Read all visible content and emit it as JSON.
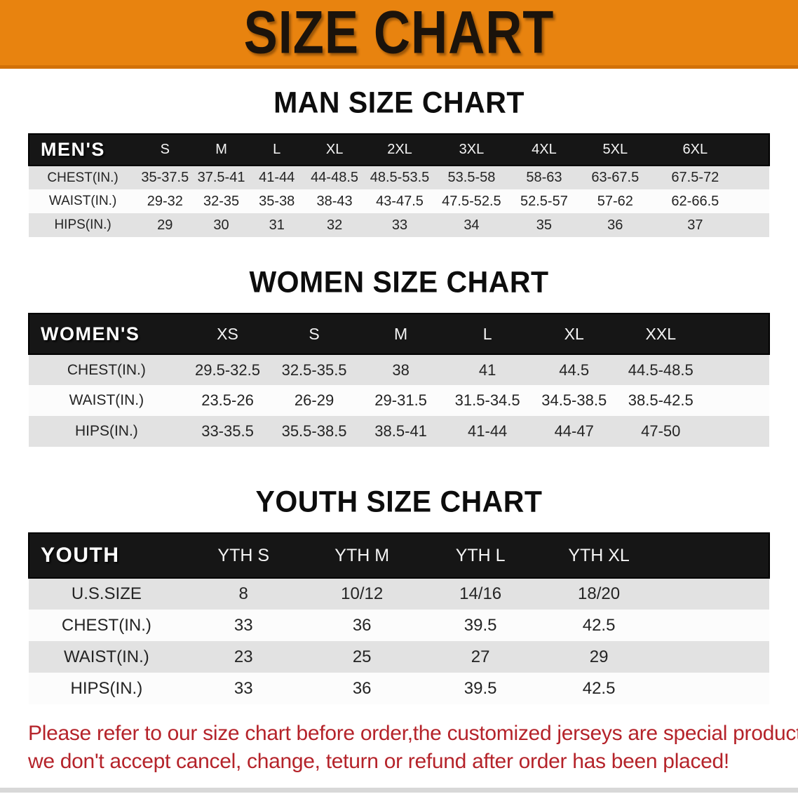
{
  "banner": {
    "title": "SIZE CHART",
    "bg_color": "#e8830f",
    "text_color": "#1b130b"
  },
  "chart_data": [
    {
      "type": "table",
      "title": "MAN SIZE CHART",
      "corner_label": "MEN'S",
      "columns": [
        "S",
        "M",
        "L",
        "XL",
        "2XL",
        "3XL",
        "4XL",
        "5XL",
        "6XL"
      ],
      "rows": [
        {
          "label": "CHEST(IN.)",
          "values": [
            "35-37.5",
            "37.5-41",
            "41-44",
            "44-48.5",
            "48.5-53.5",
            "53.5-58",
            "58-63",
            "63-67.5",
            "67.5-72"
          ]
        },
        {
          "label": "WAIST(IN.)",
          "values": [
            "29-32",
            "32-35",
            "35-38",
            "38-43",
            "43-47.5",
            "47.5-52.5",
            "52.5-57",
            "57-62",
            "62-66.5"
          ]
        },
        {
          "label": "HIPS(IN.)",
          "values": [
            "29",
            "30",
            "31",
            "32",
            "33",
            "34",
            "35",
            "36",
            "37"
          ]
        }
      ]
    },
    {
      "type": "table",
      "title": "WOMEN SIZE CHART",
      "corner_label": "WOMEN'S",
      "columns": [
        "XS",
        "S",
        "M",
        "L",
        "XL",
        "XXL"
      ],
      "rows": [
        {
          "label": "CHEST(IN.)",
          "values": [
            "29.5-32.5",
            "32.5-35.5",
            "38",
            "41",
            "44.5",
            "44.5-48.5"
          ]
        },
        {
          "label": "WAIST(IN.)",
          "values": [
            "23.5-26",
            "26-29",
            "29-31.5",
            "31.5-34.5",
            "34.5-38.5",
            "38.5-42.5"
          ]
        },
        {
          "label": "HIPS(IN.)",
          "values": [
            "33-35.5",
            "35.5-38.5",
            "38.5-41",
            "41-44",
            "44-47",
            "47-50"
          ]
        }
      ]
    },
    {
      "type": "table",
      "title": "YOUTH SIZE CHART",
      "corner_label": "YOUTH",
      "columns": [
        "YTH S",
        "YTH M",
        "YTH L",
        "YTH XL"
      ],
      "rows": [
        {
          "label": "U.S.SIZE",
          "values": [
            "8",
            "10/12",
            "14/16",
            "18/20"
          ]
        },
        {
          "label": "CHEST(IN.)",
          "values": [
            "33",
            "36",
            "39.5",
            "42.5"
          ]
        },
        {
          "label": "WAIST(IN.)",
          "values": [
            "23",
            "25",
            "27",
            "29"
          ]
        },
        {
          "label": "HIPS(IN.)",
          "values": [
            "33",
            "36",
            "39.5",
            "42.5"
          ]
        }
      ]
    }
  ],
  "disclaimer": {
    "line1": "Please refer to our size chart before order,the customized jerseys are special products,",
    "line2": "we don't accept cancel, change, teturn or refund after order has been placed!",
    "color": "#b5232a"
  }
}
